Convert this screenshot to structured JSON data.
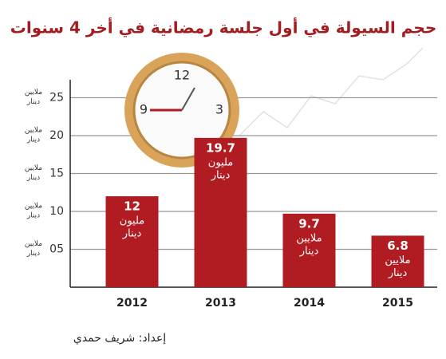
{
  "chart_data": {
    "type": "bar",
    "title": "حجم السيولة في أول جلسة رمضانية في أخر 4 سنوات",
    "credit": "إعداد: شريف حمدي",
    "categories": [
      "2012",
      "2013",
      "2014",
      "2015"
    ],
    "values": [
      12,
      19.7,
      9.7,
      6.8
    ],
    "value_units": [
      [
        "مليون",
        "دينار"
      ],
      [
        "مليون",
        "دينار"
      ],
      [
        "ملايين",
        "دينار"
      ],
      [
        "ملايين",
        "دينار"
      ]
    ],
    "ytick_unit": [
      "ملايين",
      "دينار"
    ],
    "color": "#b01c22",
    "ylim": [
      0,
      27.5
    ],
    "yticks": [
      {
        "value": 5,
        "label": "05"
      },
      10,
      15,
      20,
      25
    ],
    "grid": true
  }
}
